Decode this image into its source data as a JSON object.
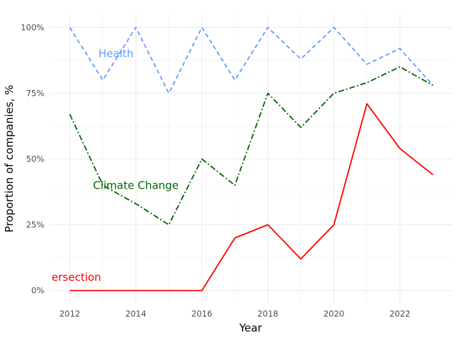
{
  "chart_data": {
    "type": "line",
    "xlabel": "Year",
    "ylabel": "Proportion of companies, %",
    "xlim": [
      2011.4,
      2023.6
    ],
    "ylim": [
      -0.05,
      1.05
    ],
    "x_ticks": [
      2012,
      2014,
      2016,
      2018,
      2020,
      2022
    ],
    "x_tick_labels": [
      "2012",
      "2014",
      "2016",
      "2018",
      "2020",
      "2022"
    ],
    "y_ticks": [
      0,
      0.25,
      0.5,
      0.75,
      1.0
    ],
    "y_tick_labels": [
      "0%",
      "25%",
      "50%",
      "75%",
      "100%"
    ],
    "grid": true,
    "legend": "none",
    "x": [
      2012,
      2013,
      2014,
      2015,
      2016,
      2017,
      2018,
      2019,
      2020,
      2021,
      2022,
      2023
    ],
    "series": [
      {
        "name": "Health",
        "color": "#619CFF",
        "linestyle": "dashed",
        "label_text": "Health",
        "label_at": [
          2013.4,
          0.9
        ],
        "values": [
          1.0,
          0.8,
          1.0,
          0.75,
          1.0,
          0.8,
          1.0,
          0.88,
          1.0,
          0.86,
          0.92,
          0.78
        ]
      },
      {
        "name": "Climate Change",
        "color": "#006400",
        "linestyle": "dashdot",
        "label_text": "Climate Change",
        "label_at": [
          2014.0,
          0.4
        ],
        "values": [
          0.67,
          0.4,
          0.33,
          0.25,
          0.5,
          0.4,
          0.75,
          0.62,
          0.75,
          0.79,
          0.85,
          0.78
        ]
      },
      {
        "name": "Intersection",
        "color": "#FF0000",
        "linestyle": "solid",
        "label_text": "ersection",
        "label_at": [
          2012.2,
          0.05
        ],
        "values": [
          0,
          0,
          0,
          0,
          0,
          0.2,
          0.25,
          0.12,
          0.25,
          0.71,
          0.54,
          0.44
        ]
      }
    ]
  }
}
